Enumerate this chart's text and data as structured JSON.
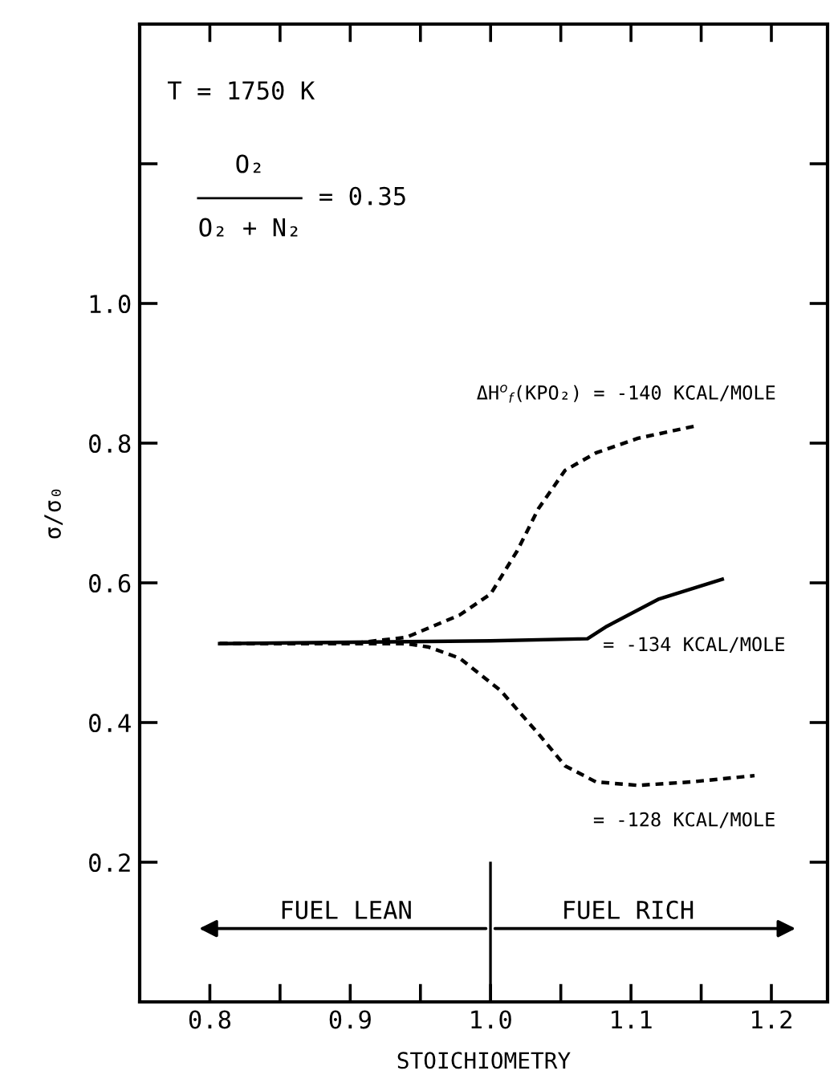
{
  "chart_data": {
    "type": "line",
    "xlabel": "STOICHIOMETRY",
    "ylabel": "σ/σ₀",
    "xlim": [
      0.75,
      1.24
    ],
    "ylim": [
      0,
      1.4
    ],
    "xticks": [
      0.8,
      {
        "value": 0.85,
        "label": null
      },
      0.9,
      {
        "value": 0.95,
        "label": null
      },
      "1.0",
      {
        "value": 1.05,
        "label": null
      },
      1.1,
      {
        "value": 1.15,
        "label": null
      },
      1.2
    ],
    "yticks": [
      0.2,
      0.4,
      0.6,
      0.8,
      "1.0",
      {
        "value": 1.2,
        "label": null
      }
    ],
    "grid": false,
    "marker": "none",
    "series": [
      {
        "name": "ΔH$^{o}$$_{f}$(KPO₂) = -140 KCAL/MOLE",
        "color": "#000000",
        "line_style": "dashed",
        "x": [
          0.807,
          0.85,
          0.9,
          0.94,
          0.978,
          1.0,
          1.019,
          1.034,
          1.053,
          1.075,
          1.105,
          1.147
        ],
        "values": [
          0.513,
          0.513,
          0.513,
          0.522,
          0.554,
          0.584,
          0.646,
          0.706,
          0.761,
          0.786,
          0.807,
          0.825
        ]
      },
      {
        "name": "= -134 KCAL/MOLE",
        "color": "#000000",
        "line_style": "solid",
        "x": [
          0.807,
          0.9,
          1.0,
          1.069,
          1.083,
          1.12,
          1.165
        ],
        "values": [
          0.513,
          0.515,
          0.517,
          0.52,
          0.538,
          0.577,
          0.605
        ]
      },
      {
        "name": "= -128 KCAL/MOLE",
        "color": "#000000",
        "line_style": "dashed",
        "x": [
          0.807,
          0.85,
          0.9,
          0.94,
          0.956,
          0.978,
          1.007,
          1.034,
          1.053,
          1.075,
          1.105,
          1.143,
          1.188
        ],
        "values": [
          0.513,
          0.513,
          0.513,
          0.513,
          0.508,
          0.492,
          0.446,
          0.384,
          0.338,
          0.315,
          0.31,
          0.315,
          0.324
        ]
      }
    ],
    "annotations": [
      "T = 1750 K",
      "O₂",
      "O₂ + N₂",
      "= 0.35",
      "FUEL LEAN",
      "FUEL RICH"
    ]
  }
}
